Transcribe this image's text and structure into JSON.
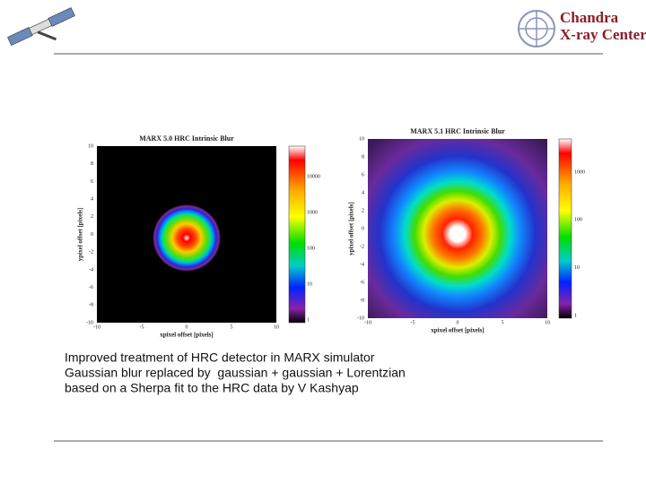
{
  "logo": {
    "line1": "Chandra",
    "line2": "X-ray Center"
  },
  "plots": [
    {
      "title": "MARX 5.0 HRC Intrinsic Blur",
      "xlabel": "xpixel offset [pixels]",
      "ylabel": "ypixel offset [pixels]",
      "xticks": [
        -10,
        -5,
        0,
        5,
        10
      ],
      "yticks": [
        10,
        8,
        6,
        4,
        2,
        0,
        -2,
        -4,
        -6,
        -8,
        -10
      ],
      "colorbar_ticks": [
        10000,
        1000,
        100,
        10,
        1
      ]
    },
    {
      "title": "MARX 5.1 HRC Intrinsic Blur",
      "xlabel": "xpixel offset [pixels]",
      "ylabel": "ypixel offset [pixels]",
      "xticks": [
        -10,
        -5,
        0,
        5,
        10
      ],
      "yticks": [
        10,
        8,
        6,
        4,
        2,
        0,
        -2,
        -4,
        -6,
        -8,
        -10
      ],
      "colorbar_ticks": [
        1000,
        100,
        10,
        1
      ]
    }
  ],
  "caption": [
    "Improved treatment of HRC detector in MARX simulator",
    "Gaussian blur replaced by  gaussian + gaussian + Lorentzian",
    "based on a Sherpa fit to the HRC data by V Kashyap"
  ]
}
